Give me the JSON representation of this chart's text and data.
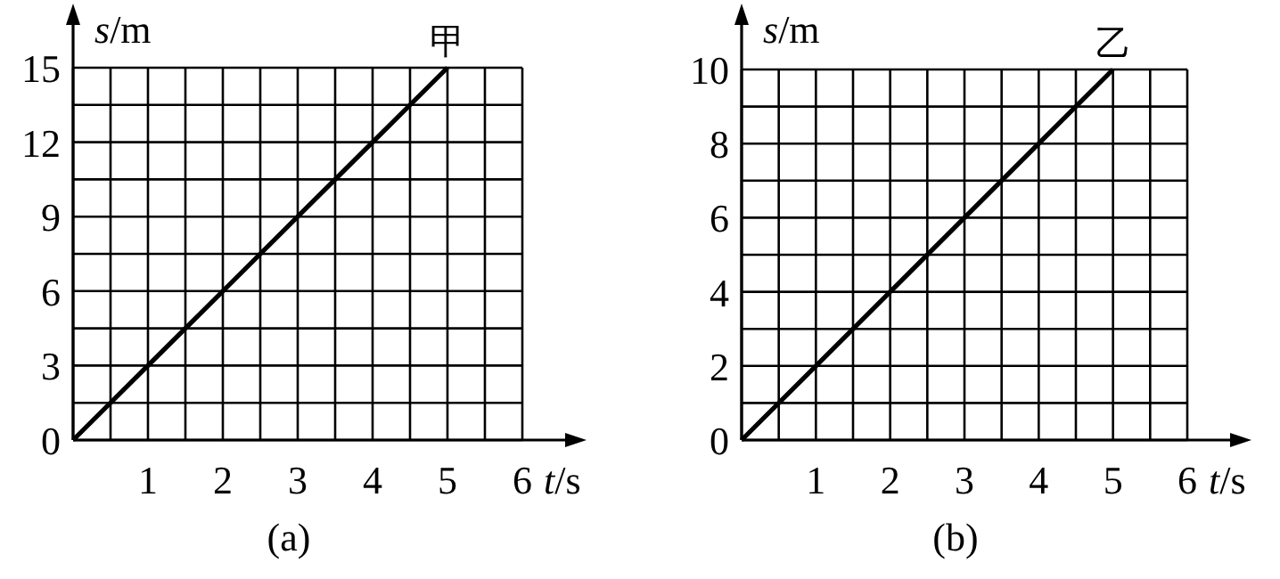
{
  "chart_data": [
    {
      "type": "line",
      "title": "(a)",
      "xlabel": "*t*/s",
      "ylabel": "*s*/m",
      "grid": true,
      "marker": "none",
      "line_style": "solid",
      "series": [
        {
          "color": "#000000",
          "x": [
            0,
            1,
            2,
            3,
            4,
            5
          ],
          "values": [
            0,
            3,
            6,
            9,
            12,
            15
          ]
        }
      ],
      "xlim": [
        0,
        6
      ],
      "ylim": [
        0,
        15
      ],
      "xticks": [
        {
          "value": 0,
          "label": null
        },
        {
          "value": 0.5,
          "label": null
        },
        1,
        {
          "value": 1.5,
          "label": null
        },
        2,
        {
          "value": 2.5,
          "label": null
        },
        3,
        {
          "value": 3.5,
          "label": null
        },
        4,
        {
          "value": 4.5,
          "label": null
        },
        5,
        {
          "value": 5.5,
          "label": null
        },
        6
      ],
      "yticks": [
        0,
        {
          "value": 1.5,
          "label": null
        },
        3,
        {
          "value": 4.5,
          "label": null
        },
        6,
        {
          "value": 7.5,
          "label": null
        },
        9,
        {
          "value": 10.5,
          "label": null
        },
        12,
        {
          "value": 13.5,
          "label": null
        },
        15
      ],
      "annotations": [
        {
          "text": "甲",
          "x": 5,
          "y": 15
        }
      ]
    },
    {
      "type": "line",
      "title": "(b)",
      "xlabel": "*t*/s",
      "ylabel": "*s*/m",
      "grid": true,
      "marker": "none",
      "line_style": "solid",
      "series": [
        {
          "color": "#000000",
          "x": [
            0,
            1,
            2,
            3,
            4,
            5
          ],
          "values": [
            0,
            2,
            4,
            6,
            8,
            10
          ]
        }
      ],
      "xlim": [
        0,
        6
      ],
      "ylim": [
        0,
        10
      ],
      "xticks": [
        {
          "value": 0,
          "label": null
        },
        {
          "value": 0.5,
          "label": null
        },
        1,
        {
          "value": 1.5,
          "label": null
        },
        2,
        {
          "value": 2.5,
          "label": null
        },
        3,
        {
          "value": 3.5,
          "label": null
        },
        4,
        {
          "value": 4.5,
          "label": null
        },
        5,
        {
          "value": 5.5,
          "label": null
        },
        6
      ],
      "yticks": [
        0,
        {
          "value": 1,
          "label": null
        },
        2,
        {
          "value": 3,
          "label": null
        },
        4,
        {
          "value": 5,
          "label": null
        },
        6,
        {
          "value": 7,
          "label": null
        },
        8,
        {
          "value": 9,
          "label": null
        },
        10
      ],
      "annotations": [
        {
          "text": "乙",
          "x": 5,
          "y": 10
        }
      ]
    }
  ]
}
